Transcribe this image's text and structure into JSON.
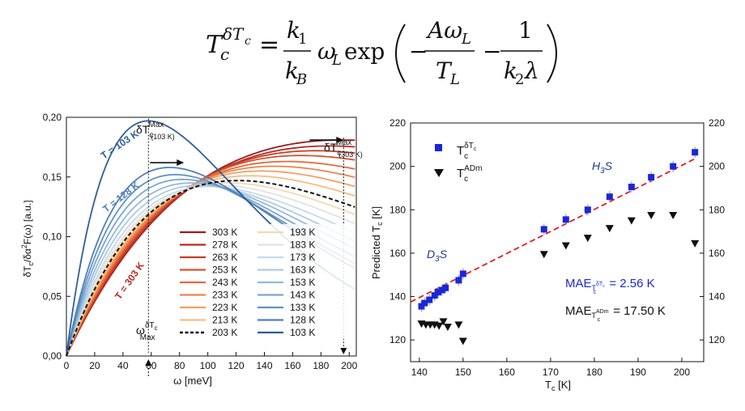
{
  "formula": {
    "lhs_base": "T",
    "lhs_sub": "c",
    "lhs_sup": "δT",
    "lhs_sup_sub": "c",
    "equals": "=",
    "k1": "k",
    "k1_sub": "1",
    "kB": "k",
    "kB_sub": "B",
    "omega": "ω",
    "omega_sub": "L",
    "exp": "exp",
    "minus": "−",
    "A_omega": "Aω",
    "A_omega_sub": "L",
    "TL": "T",
    "TL_sub": "L",
    "one": "1",
    "k2": "k",
    "k2_sub": "2",
    "lambda": "λ"
  },
  "chart_data": [
    {
      "type": "line",
      "title": "",
      "xlabel": "ω [meV]",
      "ylabel": "δT",
      "ylabel_sub": "c",
      "ylabel_tail": "/δα",
      "ylabel_sup": "2",
      "ylabel_end": "F(ω)  [a.u.]",
      "xlim": [
        0,
        205
      ],
      "ylim": [
        0,
        0.2
      ],
      "xticks": [
        "0",
        "20",
        "40",
        "60",
        "80",
        "100",
        "120",
        "140",
        "160",
        "180",
        "200"
      ],
      "yticks": [
        "0,00",
        "0,05",
        "0,10",
        "0,15",
        "0,20"
      ],
      "model": "y = c·ω·exp(−ω/T)",
      "series": [
        {
          "name": "303 K",
          "T": 303,
          "peak_omega": 195,
          "peak_y": 0.181,
          "color": "#9e1b1b"
        },
        {
          "name": "278 K",
          "T": 278,
          "peak_omega": 186,
          "peak_y": 0.176,
          "color": "#b42a22"
        },
        {
          "name": "263 K",
          "T": 263,
          "peak_omega": 176,
          "peak_y": 0.172,
          "color": "#c63d28"
        },
        {
          "name": "253 K",
          "T": 253,
          "peak_omega": 166,
          "peak_y": 0.168,
          "color": "#d6532f"
        },
        {
          "name": "243 K",
          "T": 243,
          "peak_omega": 156,
          "peak_y": 0.163,
          "color": "#e36b3a"
        },
        {
          "name": "233 K",
          "T": 233,
          "peak_omega": 147,
          "peak_y": 0.159,
          "color": "#ec854b"
        },
        {
          "name": "223 K",
          "T": 223,
          "peak_omega": 138,
          "peak_y": 0.155,
          "color": "#f2a062"
        },
        {
          "name": "213 K",
          "T": 213,
          "peak_omega": 130,
          "peak_y": 0.151,
          "color": "#f6bd83"
        },
        {
          "name": "203 K",
          "T": 203,
          "peak_omega": 121,
          "peak_y": 0.147,
          "color": "#111111",
          "dashed": true
        },
        {
          "name": "193 K",
          "T": 193,
          "peak_omega": 115,
          "peak_y": 0.145,
          "color": "#f2d9b4"
        },
        {
          "name": "183 K",
          "T": 183,
          "peak_omega": 108,
          "peak_y": 0.143,
          "color": "#e1e3df"
        },
        {
          "name": "173 K",
          "T": 173,
          "peak_omega": 101,
          "peak_y": 0.142,
          "color": "#c7d9ea"
        },
        {
          "name": "163 K",
          "T": 163,
          "peak_omega": 94,
          "peak_y": 0.143,
          "color": "#aecbe4"
        },
        {
          "name": "153 K",
          "T": 153,
          "peak_omega": 88,
          "peak_y": 0.145,
          "color": "#94badc"
        },
        {
          "name": "143 K",
          "T": 143,
          "peak_omega": 82,
          "peak_y": 0.148,
          "color": "#7aa6d0"
        },
        {
          "name": "133 K",
          "T": 133,
          "peak_omega": 77,
          "peak_y": 0.152,
          "color": "#6293c4"
        },
        {
          "name": "128 K",
          "T": 128,
          "peak_omega": 73,
          "peak_y": 0.158,
          "color": "#4f80b6"
        },
        {
          "name": "103 K",
          "T": 103,
          "peak_omega": 58,
          "peak_y": 0.197,
          "color": "#2f5e98"
        }
      ],
      "annotations": {
        "t103": "T = 103 K",
        "t128": "T = 128 K",
        "t303": "T = 303 K",
        "max_left_main": "δT",
        "max_left_sub": "c",
        "max_left_sup": "Max",
        "max_left_paren": "(103 K)",
        "max_right_main": "δT",
        "max_right_sub": "c",
        "max_right_sup": "Max",
        "max_right_paren": "(303 K)",
        "omega_max_main": "ω",
        "omega_max_sup": "δT",
        "omega_max_sup_sub": "c",
        "omega_max_sub": "Max",
        "omega_max_left": 58,
        "omega_max_right": 196
      }
    },
    {
      "type": "scatter",
      "title": "",
      "xlabel": "T",
      "xlabel_sub": "c",
      "xlabel_tail": " [K]",
      "ylabel": "Predicted T",
      "ylabel_sub": "c",
      "ylabel_tail": " [K]",
      "xlim": [
        138,
        205
      ],
      "ylim": [
        110,
        220
      ],
      "xticks": [
        "140",
        "150",
        "160",
        "170",
        "180",
        "190",
        "200"
      ],
      "yticks": [
        "120",
        "140",
        "160",
        "180",
        "200",
        "220"
      ],
      "series": [
        {
          "name": "T_c^δTc",
          "marker": "square",
          "color": "#1a27d6",
          "x": [
            140.5,
            141.2,
            142.3,
            143.5,
            144.3,
            145.2,
            146.0,
            149.0,
            150.0,
            168.5,
            173.5,
            178.5,
            183.5,
            188.5,
            193.0,
            198.0,
            203.0
          ],
          "y": [
            135.5,
            137.0,
            138.5,
            140.5,
            142.0,
            143.0,
            144.0,
            147.5,
            150.5,
            171.0,
            175.5,
            180.0,
            186.0,
            190.5,
            195.0,
            200.0,
            206.5
          ]
        },
        {
          "name": "T_c^ADm",
          "marker": "triangle-down",
          "color": "#111111",
          "x": [
            140.5,
            141.5,
            142.5,
            143.5,
            144.5,
            145.5,
            146.5,
            149.0,
            150.0,
            168.5,
            173.5,
            178.5,
            183.5,
            188.5,
            193.0,
            198.0,
            203.0
          ],
          "y": [
            127.5,
            127.0,
            127.0,
            127.0,
            126.5,
            128.5,
            126.0,
            127.0,
            119.5,
            159.5,
            163.5,
            167.0,
            171.5,
            175.0,
            177.5,
            177.5,
            164.5
          ]
        }
      ],
      "fit_line": {
        "color": "#e02020",
        "x": [
          138,
          203
        ],
        "y": [
          137.5,
          203.5
        ]
      },
      "legend": {
        "sq_main": "T",
        "sq_sub": "c",
        "sq_sup": "δT",
        "sq_sup_sub": "c",
        "tri_main": "T",
        "tri_sub": "c",
        "tri_sup": "ADm"
      },
      "labels": {
        "h3s": "H",
        "h3s_sub": "3",
        "h3s_tail": "S",
        "d3s": "D",
        "d3s_sub": "3",
        "d3s_tail": "S",
        "mae1_pre": "MAE",
        "mae1_sub": "T",
        "mae1_sub_sup": "δT",
        "mae1_sub_sup_sub": "c",
        "mae1_sub_sub": "c",
        "mae1_val": " = 2.56 K",
        "mae2_pre": "MAE",
        "mae2_sub": "T",
        "mae2_sub_sup": "ADm",
        "mae2_sub_sub": "c",
        "mae2_val": " = 17.50 K"
      }
    }
  ]
}
